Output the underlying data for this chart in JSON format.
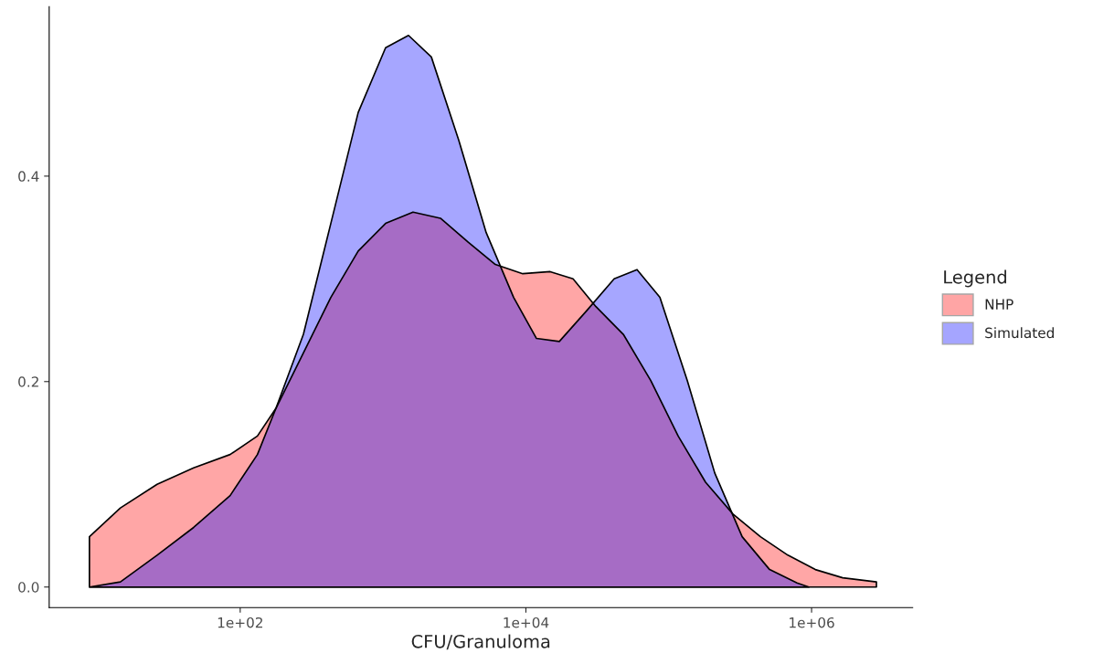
{
  "chart_data": {
    "type": "area",
    "xlabel": "CFU/Granuloma",
    "legend_title": "Legend",
    "legend": "right",
    "grid": false,
    "log": "x",
    "xlim": [
      4.6,
      5100000
    ],
    "xticks": [
      {
        "value": 100,
        "label": "1e+02"
      },
      {
        "value": 10000,
        "label": "1e+04"
      },
      {
        "value": 1000000,
        "label": "1e+06"
      }
    ],
    "ylim": [
      -0.02,
      0.565
    ],
    "yticks": [
      {
        "value": 0,
        "label": "0.0"
      },
      {
        "value": 0.2,
        "label": "0.2"
      },
      {
        "value": 0.4,
        "label": "0.4"
      }
    ],
    "series": [
      {
        "name": "NHP",
        "color": "#ff0000",
        "x": [
          8.8,
          14.5,
          26.2,
          47.2,
          85,
          132,
          178,
          277,
          431,
          670,
          1042,
          1622,
          2523,
          3926,
          6109,
          9506,
          14790,
          21380,
          30900,
          48080,
          74820,
          116400,
          181100,
          281800,
          438500,
          682300,
          1062000,
          1652000,
          2844000
        ],
        "values": [
          0.049,
          0.077,
          0.1,
          0.116,
          0.129,
          0.147,
          0.174,
          0.228,
          0.282,
          0.327,
          0.354,
          0.365,
          0.359,
          0.336,
          0.314,
          0.305,
          0.307,
          0.3,
          0.273,
          0.246,
          0.201,
          0.147,
          0.102,
          0.071,
          0.049,
          0.031,
          0.017,
          0.009,
          0.005
        ]
      },
      {
        "name": "Simulated",
        "color": "#0000ff",
        "x": [
          8.8,
          14.5,
          26.2,
          47.2,
          85,
          132,
          178,
          277,
          431,
          670,
          1042,
          1507,
          2178,
          3388,
          5272,
          8204,
          11860,
          17140,
          26670,
          41500,
          59980,
          86700,
          134900,
          209900,
          326600,
          508200,
          790700,
          957000
        ],
        "values": [
          0,
          0.005,
          0.031,
          0.058,
          0.089,
          0.129,
          0.174,
          0.246,
          0.354,
          0.462,
          0.525,
          0.537,
          0.516,
          0.435,
          0.345,
          0.282,
          0.242,
          0.239,
          0.269,
          0.3,
          0.309,
          0.282,
          0.201,
          0.111,
          0.049,
          0.017,
          0.004,
          0
        ]
      }
    ]
  }
}
